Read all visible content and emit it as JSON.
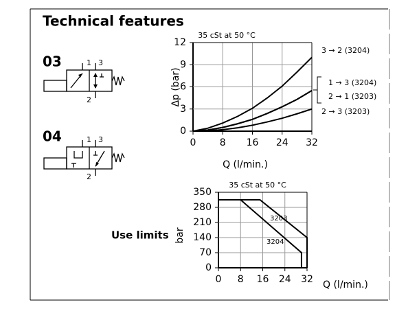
{
  "title": "Technical features",
  "symbols": [
    {
      "code": "03",
      "ports": [
        "1",
        "3",
        "2"
      ]
    },
    {
      "code": "04",
      "ports": [
        "1",
        "3",
        "2"
      ]
    }
  ],
  "use_limits_label": "Use limits",
  "chart_data": [
    {
      "type": "line",
      "subtitle": "35 cSt at 50 °C",
      "x_label": "Q (l/min.)",
      "y_label": "Δp (bar)",
      "x": [
        0,
        4,
        8,
        12,
        16,
        20,
        24,
        28,
        32
      ],
      "xlim": [
        0,
        32
      ],
      "xticks": [
        0,
        8,
        16,
        24,
        32
      ],
      "ylim": [
        0,
        12
      ],
      "yticks": [
        0,
        3,
        6,
        9,
        12
      ],
      "grid": true,
      "series": [
        {
          "name": "3 → 2 (3204)",
          "color": "#000000",
          "values": [
            0,
            0.4,
            1.1,
            2.0,
            3.1,
            4.5,
            6.1,
            8.0,
            10.0
          ]
        },
        {
          "name": "1 → 3 (3204)",
          "color": "#000000",
          "values": [
            0,
            0.15,
            0.5,
            1.0,
            1.6,
            2.4,
            3.3,
            4.3,
            5.5
          ]
        },
        {
          "name": "2 → 1 (3203)",
          "color": "#000000",
          "values": [
            0,
            0.15,
            0.5,
            1.0,
            1.6,
            2.4,
            3.3,
            4.3,
            5.5
          ]
        },
        {
          "name": "2 → 3 (3203)",
          "color": "#000000",
          "values": [
            0,
            0.05,
            0.2,
            0.45,
            0.8,
            1.25,
            1.75,
            2.35,
            3.0
          ]
        }
      ]
    },
    {
      "type": "line",
      "subtitle": "35 cSt at 50 °C",
      "x_label": "Q (l/min.)",
      "y_label": "bar",
      "xlim": [
        0,
        32
      ],
      "xticks": [
        0,
        8,
        16,
        24,
        32
      ],
      "ylim": [
        0,
        350
      ],
      "yticks": [
        0,
        70,
        140,
        210,
        280,
        350
      ],
      "grid": true,
      "series": [
        {
          "name": "3203",
          "color": "#000000",
          "x": [
            0,
            15,
            32,
            32
          ],
          "values": [
            315,
            315,
            140,
            0
          ]
        },
        {
          "name": "3204",
          "color": "#000000",
          "x": [
            0,
            8,
            30,
            30
          ],
          "values": [
            315,
            315,
            70,
            0
          ]
        }
      ]
    }
  ]
}
